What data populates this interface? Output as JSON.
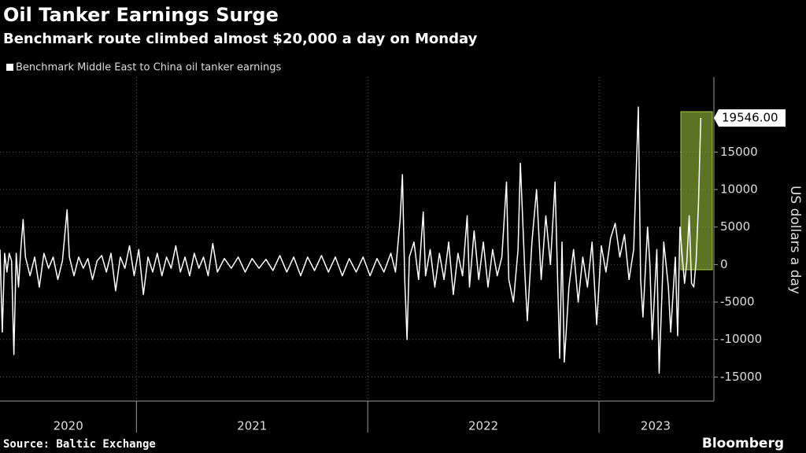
{
  "chart_data": {
    "type": "line",
    "title": "Oil Tanker Earnings Surge",
    "subtitle": "Benchmark route climbed almost $20,000 a day on Monday",
    "y_label": "US dollars a day",
    "source": "Source: Baltic Exchange",
    "brand": "Bloomberg",
    "xlim": [
      2020.41,
      2023.49
    ],
    "xticks": [
      {
        "value": 2020,
        "label": "2020"
      },
      {
        "value": 2021,
        "label": "2021"
      },
      {
        "value": 2022,
        "label": "2022"
      },
      {
        "value": 2023,
        "label": "2023"
      }
    ],
    "ylim": [
      -18000,
      25000
    ],
    "yticks": [
      -15000,
      -10000,
      -5000,
      0,
      5000,
      10000,
      15000
    ],
    "grid": true,
    "series": [
      {
        "name": "Benchmark Middle East to China oil tanker earnings",
        "color": "#ffffff",
        "last_value_label": "19546.00",
        "x": [
          2020.41,
          2020.42,
          2020.43,
          2020.44,
          2020.45,
          2020.46,
          2020.47,
          2020.48,
          2020.49,
          2020.5,
          2020.51,
          2020.52,
          2020.54,
          2020.56,
          2020.58,
          2020.6,
          2020.62,
          2020.64,
          2020.66,
          2020.68,
          2020.7,
          2020.71,
          2020.73,
          2020.75,
          2020.77,
          2020.79,
          2020.81,
          2020.83,
          2020.85,
          2020.87,
          2020.89,
          2020.91,
          2020.93,
          2020.95,
          2020.97,
          2020.99,
          2021.01,
          2021.03,
          2021.05,
          2021.07,
          2021.09,
          2021.11,
          2021.13,
          2021.15,
          2021.17,
          2021.19,
          2021.21,
          2021.23,
          2021.25,
          2021.27,
          2021.29,
          2021.31,
          2021.33,
          2021.35,
          2021.38,
          2021.41,
          2021.44,
          2021.47,
          2021.5,
          2021.53,
          2021.56,
          2021.59,
          2021.62,
          2021.65,
          2021.68,
          2021.71,
          2021.74,
          2021.77,
          2021.8,
          2021.83,
          2021.86,
          2021.89,
          2021.92,
          2021.95,
          2021.98,
          2022.01,
          2022.04,
          2022.07,
          2022.1,
          2022.12,
          2022.14,
          2022.15,
          2022.16,
          2022.17,
          2022.18,
          2022.2,
          2022.22,
          2022.24,
          2022.25,
          2022.27,
          2022.29,
          2022.31,
          2022.33,
          2022.35,
          2022.37,
          2022.39,
          2022.41,
          2022.43,
          2022.44,
          2022.46,
          2022.48,
          2022.5,
          2022.52,
          2022.54,
          2022.56,
          2022.58,
          2022.6,
          2022.61,
          2022.63,
          2022.65,
          2022.66,
          2022.68,
          2022.69,
          2022.71,
          2022.73,
          2022.75,
          2022.77,
          2022.79,
          2022.81,
          2022.83,
          2022.84,
          2022.85,
          2022.87,
          2022.89,
          2022.91,
          2022.93,
          2022.95,
          2022.97,
          2022.99,
          2023.01,
          2023.03,
          2023.05,
          2023.07,
          2023.09,
          2023.11,
          2023.13,
          2023.15,
          2023.17,
          2023.18,
          2023.19,
          2023.21,
          2023.22,
          2023.23,
          2023.25,
          2023.26,
          2023.28,
          2023.3,
          2023.31,
          2023.33,
          2023.34,
          2023.35,
          2023.36,
          2023.37,
          2023.38,
          2023.39,
          2023.4,
          2023.41,
          2023.42,
          2023.43,
          2023.44
        ],
        "values": [
          2000,
          -9000,
          1500,
          -1000,
          1500,
          500,
          -12000,
          1500,
          -3000,
          2000,
          6000,
          1000,
          -1500,
          1000,
          -3000,
          1500,
          -500,
          1000,
          -2000,
          500,
          7300,
          1000,
          -1500,
          1000,
          -500,
          800,
          -2000,
          500,
          1200,
          -1000,
          1500,
          -3500,
          1000,
          -500,
          2500,
          -1500,
          2000,
          -4000,
          1000,
          -1000,
          1500,
          -1500,
          1000,
          -500,
          2500,
          -1000,
          1000,
          -1500,
          1500,
          -500,
          1000,
          -1500,
          2800,
          -1000,
          800,
          -500,
          1000,
          -1000,
          800,
          -500,
          700,
          -800,
          1200,
          -1000,
          1000,
          -1500,
          1000,
          -800,
          1200,
          -1000,
          1000,
          -1500,
          800,
          -1000,
          1000,
          -1500,
          800,
          -1000,
          1500,
          -1000,
          6000,
          12000,
          -2000,
          -10000,
          1000,
          3000,
          -2000,
          7000,
          -1500,
          2000,
          -3000,
          1500,
          -2000,
          3000,
          -4000,
          1500,
          -1500,
          6500,
          -3000,
          4500,
          -2000,
          3000,
          -3000,
          2000,
          -1500,
          1000,
          11000,
          -2000,
          -5000,
          2000,
          13500,
          -1500,
          -7500,
          3000,
          10000,
          -2000,
          6500,
          0,
          11000,
          -12500,
          3000,
          -13000,
          -3000,
          2000,
          -5000,
          1000,
          -3000,
          3000,
          -8000,
          2500,
          -1000,
          3500,
          5500,
          1000,
          4000,
          -2000,
          2000,
          21000,
          -2000,
          -7000,
          5000,
          0,
          -10000,
          2000,
          -14500,
          3000,
          -3000,
          -9000,
          1000,
          -9500,
          5000,
          1000,
          -2500,
          500,
          6500,
          -2500,
          -3000,
          500,
          8000,
          19546
        ]
      }
    ]
  }
}
